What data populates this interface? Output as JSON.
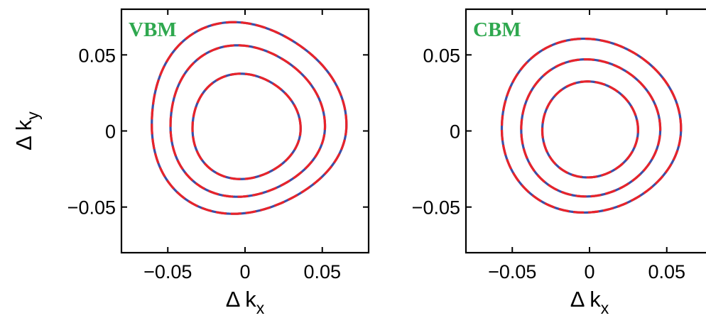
{
  "chart_data": [
    {
      "type": "line",
      "panel_label": "VBM",
      "xlim": [
        -0.08,
        0.08
      ],
      "ylim": [
        -0.08,
        0.08
      ],
      "xticks": [
        -0.05,
        0,
        0.05
      ],
      "yticks": [
        -0.05,
        0,
        0.05
      ],
      "xtick_labels": [
        "−0.05",
        "0",
        "0.05"
      ],
      "ytick_labels": [
        "−0.05",
        "0",
        "0.05"
      ],
      "xlabel": "Δ k",
      "xlabel_sub": "x",
      "ylabel": "Δ k",
      "ylabel_sub": "y",
      "grid": false,
      "contours": [
        {
          "center_x": 0,
          "center_y": 0.0015,
          "top": 0.036,
          "bottom": -0.033,
          "left": -0.035,
          "right": 0.035,
          "triangularity": 0.08
        },
        {
          "center_x": 0,
          "center_y": 0.003,
          "top": 0.053,
          "bottom": -0.046,
          "left": -0.05,
          "right": 0.05,
          "triangularity": 0.1
        },
        {
          "center_x": 0,
          "center_y": 0.004,
          "top": 0.067,
          "bottom": -0.058,
          "left": -0.063,
          "right": 0.063,
          "triangularity": 0.12
        }
      ],
      "series": [
        {
          "style": "solid",
          "color": "#3a4fa8"
        },
        {
          "style": "dashed",
          "color": "#e8232a"
        }
      ]
    },
    {
      "type": "line",
      "panel_label": "CBM",
      "xlim": [
        -0.08,
        0.08
      ],
      "ylim": [
        -0.08,
        0.08
      ],
      "xticks": [
        -0.05,
        0,
        0.05
      ],
      "yticks": [
        -0.05,
        0,
        0.05
      ],
      "xtick_labels": [
        "−0.05",
        "0",
        "0.05"
      ],
      "ytick_labels": [
        "−0.05",
        "0",
        "0.05"
      ],
      "xlabel": "Δ k",
      "xlabel_sub": "x",
      "grid": false,
      "contours": [
        {
          "center_x": 0,
          "center_y": 0.0005,
          "top": 0.032,
          "bottom": -0.031,
          "left": -0.031,
          "right": 0.031,
          "triangularity": 0.04
        },
        {
          "center_x": 0,
          "center_y": 0.001,
          "top": 0.046,
          "bottom": -0.044,
          "left": -0.045,
          "right": 0.045,
          "triangularity": 0.05
        },
        {
          "center_x": 0,
          "center_y": 0.0015,
          "top": 0.059,
          "bottom": -0.055,
          "left": -0.058,
          "right": 0.058,
          "triangularity": 0.06
        }
      ],
      "series": [
        {
          "style": "solid",
          "color": "#3a4fa8"
        },
        {
          "style": "dashed",
          "color": "#e8232a"
        }
      ]
    }
  ],
  "colors": {
    "panel_label": "#2fa84f",
    "solid_line": "#3a4fa8",
    "dashed_line": "#e8232a",
    "axes": "#000000"
  }
}
